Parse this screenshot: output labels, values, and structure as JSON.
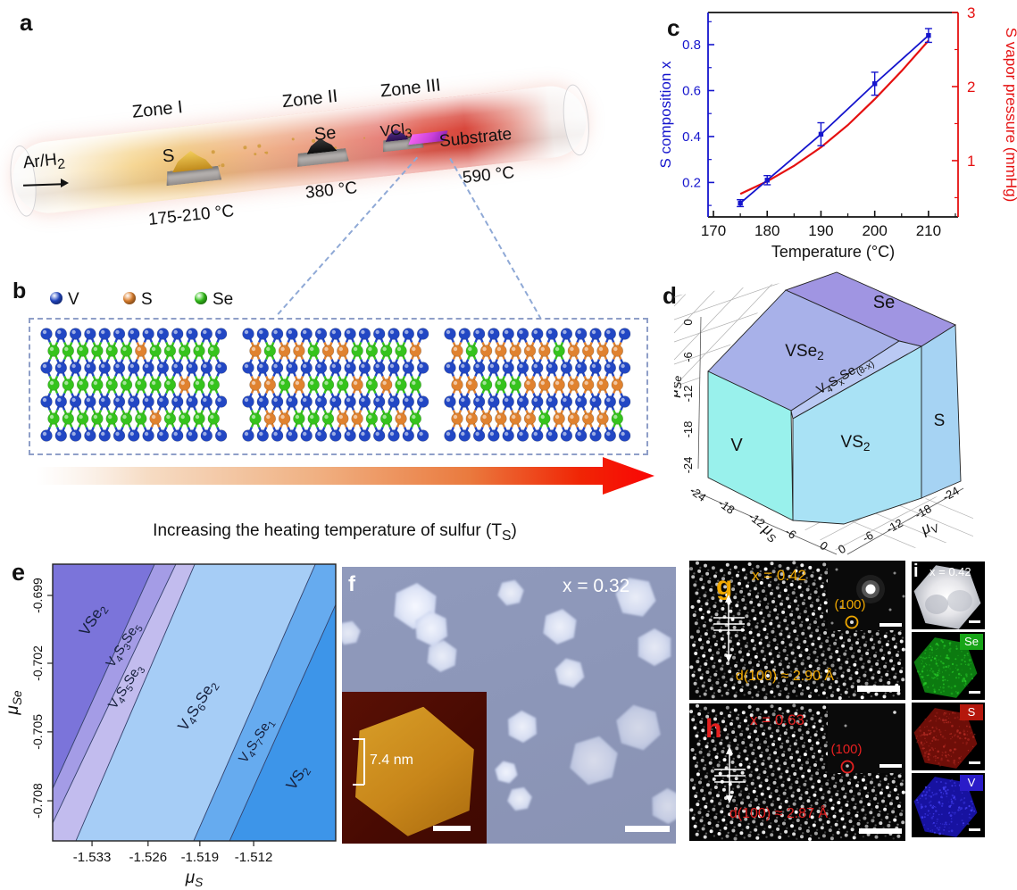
{
  "panel_a": {
    "label": "a",
    "gas_inlet": "Ar/H_{2}",
    "zones": [
      "Zone I",
      "Zone II",
      "Zone III"
    ],
    "sources": [
      {
        "name": "S",
        "temp": "175-210 °C"
      },
      {
        "name": "Se",
        "temp": "380 °C"
      },
      {
        "name": "VCl_{3}",
        "temp": ""
      },
      {
        "name": "Substrate",
        "temp": "590 °C"
      }
    ]
  },
  "panel_b": {
    "label": "b",
    "legend": [
      {
        "element": "V",
        "color": "#2247c4"
      },
      {
        "element": "S",
        "color": "#e0822f"
      },
      {
        "element": "Se",
        "color": "#35c31c"
      }
    ],
    "s_fractions": [
      0.13,
      0.45,
      0.8
    ],
    "caption": "Increasing the heating temperature of sulfur (T_{S})"
  },
  "panel_c": {
    "label": "c"
  },
  "panel_d": {
    "label": "d"
  },
  "panel_e": {
    "label": "e"
  },
  "panel_f": {
    "label": "f",
    "composition": "x = 0.32",
    "inset_thickness": "7.4 nm"
  },
  "panel_g": {
    "label": "g",
    "composition": "x = 0.42",
    "plane": "(100)",
    "spacing": "d(100) ≈ 2.90 Å",
    "accent_color": "#f0a800"
  },
  "panel_h": {
    "label": "h",
    "composition": "x = 0.63",
    "plane": "(100)",
    "spacing": "d(100) ≈ 2.87 Å",
    "accent_color": "#e52020"
  },
  "panel_i": {
    "label": "i",
    "composition": "x = 0.42",
    "maps": [
      {
        "element": "Se",
        "color": "#17a517"
      },
      {
        "element": "S",
        "color": "#b5170c"
      },
      {
        "element": "V",
        "color": "#2a1cc8"
      }
    ]
  },
  "chart_data": [
    {
      "id": "c",
      "type": "line",
      "title": "",
      "xlabel": "Temperature (°C)",
      "axes": {
        "x": {
          "ticks": [
            170,
            180,
            190,
            200,
            210
          ],
          "range": [
            169,
            215.5
          ]
        },
        "left": {
          "label": "S composition x",
          "color": "#1515cd",
          "ticks": [
            0.2,
            0.4,
            0.6,
            0.8
          ],
          "range": [
            0.05,
            0.94
          ]
        },
        "right": {
          "label": "S vapor pressure (mmHg)",
          "color": "#e51010",
          "ticks": [
            1,
            2,
            3
          ],
          "range": [
            0.24,
            3.0
          ]
        }
      },
      "series": [
        {
          "name": "S composition x",
          "axis": "left",
          "color": "#1515cd",
          "marker": "square",
          "x": [
            175,
            180,
            190,
            200,
            210
          ],
          "y": [
            0.11,
            0.21,
            0.41,
            0.63,
            0.84
          ],
          "yerr": [
            0.015,
            0.02,
            0.05,
            0.05,
            0.03
          ]
        },
        {
          "name": "S vapor pressure",
          "axis": "right",
          "color": "#e51010",
          "marker": "none",
          "x": [
            175,
            180,
            185,
            190,
            195,
            200,
            205,
            210
          ],
          "y": [
            0.55,
            0.72,
            0.93,
            1.18,
            1.48,
            1.83,
            2.21,
            2.62
          ]
        }
      ],
      "legend_position": "none",
      "grid": false
    },
    {
      "id": "d",
      "type": "3d-phase-diagram",
      "regions": [
        {
          "name": "V",
          "color": "#99f1ec"
        },
        {
          "name": "VSe_{2}",
          "color": "#a8b1e9"
        },
        {
          "name": "Se",
          "color": "#a095e2"
        },
        {
          "name": "V_{4}S_{x}Se_{(8-x)}",
          "color": "#bac9f3"
        },
        {
          "name": "VS_{2}",
          "color": "#a9e2f5"
        },
        {
          "name": "S",
          "color": "#a6d3f3"
        }
      ],
      "axes": {
        "mu_se": {
          "label": "μ_{Se}",
          "ticks": [
            0,
            -6,
            -12,
            -18,
            -24
          ]
        },
        "mu_s": {
          "label": "μ_{S}",
          "ticks": [
            -24,
            -18,
            -12,
            -6,
            0
          ]
        },
        "mu_v": {
          "label": "μ_{V}",
          "ticks": [
            0,
            -6,
            -12,
            -18,
            -24
          ]
        }
      }
    },
    {
      "id": "e",
      "type": "2d-phase-diagram",
      "xlabel": "μ_{S}",
      "ylabel": "μ_{Se}",
      "x_ticks": [
        -1.533,
        -1.526,
        -1.519,
        -1.512
      ],
      "y_ticks": [
        -0.699,
        -0.702,
        -0.705,
        -0.708
      ],
      "regions": [
        {
          "name": "VSe_{2}",
          "color": "#7b74da"
        },
        {
          "name": "V_{4}S_{3}Se_{5}",
          "color": "#a49ce6"
        },
        {
          "name": "V_{4}S_{5}Se_{3}",
          "color": "#c2bcee"
        },
        {
          "name": "V_{4}S_{6}Se_{2}",
          "color": "#a6cdf6"
        },
        {
          "name": "V_{4}S_{7}Se_{1}",
          "color": "#66abef"
        },
        {
          "name": "VS_{2}",
          "color": "#3d95e9"
        }
      ],
      "boundaries_frac": [
        {
          "x_top": 0.36,
          "x_bottom": -0.084
        },
        {
          "x_top": 0.435,
          "x_bottom": -0.03
        },
        {
          "x_top": 0.502,
          "x_bottom": 0.082
        },
        {
          "x_top": 0.928,
          "x_bottom": 0.498
        },
        {
          "x_top": 1.064,
          "x_bottom": 0.625
        }
      ]
    }
  ]
}
